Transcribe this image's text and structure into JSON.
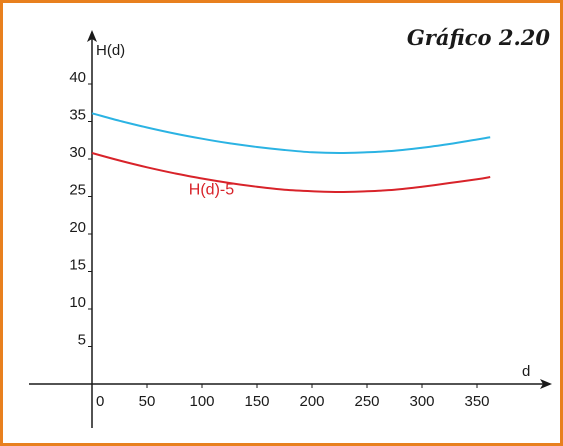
{
  "figure": {
    "label": "Gráfico 2.20"
  },
  "chart_data": {
    "type": "line",
    "title": "",
    "xlabel": "d",
    "ylabel": "H(d)",
    "xlim": [
      0,
      365
    ],
    "ylim": [
      0,
      43
    ],
    "x_ticks": [
      0,
      50,
      100,
      150,
      200,
      250,
      300,
      350
    ],
    "y_ticks": [
      5,
      10,
      15,
      20,
      25,
      30,
      35,
      40
    ],
    "grid": false,
    "series": [
      {
        "color": "#2bb3e3",
        "points": [
          [
            0,
            36.1
          ],
          [
            25,
            35.1
          ],
          [
            50,
            34.2
          ],
          [
            75,
            33.4
          ],
          [
            100,
            32.7
          ],
          [
            125,
            32.1
          ],
          [
            150,
            31.6
          ],
          [
            175,
            31.2
          ],
          [
            200,
            30.9
          ],
          [
            225,
            30.8
          ],
          [
            250,
            30.9
          ],
          [
            275,
            31.1
          ],
          [
            300,
            31.5
          ],
          [
            325,
            32.0
          ],
          [
            350,
            32.6
          ],
          [
            362,
            32.9
          ]
        ]
      },
      {
        "name": "H(d)-5",
        "color": "#d8232a",
        "points": [
          [
            0,
            30.8
          ],
          [
            25,
            29.8
          ],
          [
            50,
            28.9
          ],
          [
            75,
            28.1
          ],
          [
            100,
            27.4
          ],
          [
            125,
            26.8
          ],
          [
            150,
            26.3
          ],
          [
            175,
            25.9
          ],
          [
            200,
            25.7
          ],
          [
            225,
            25.6
          ],
          [
            250,
            25.7
          ],
          [
            275,
            25.9
          ],
          [
            300,
            26.3
          ],
          [
            325,
            26.8
          ],
          [
            350,
            27.3
          ],
          [
            362,
            27.6
          ]
        ]
      }
    ]
  }
}
